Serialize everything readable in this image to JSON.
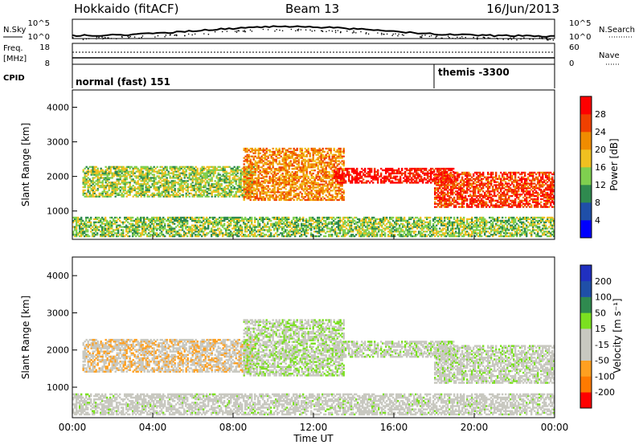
{
  "header": {
    "station": "Hokkaido (fitACF)",
    "beam": "Beam 13",
    "date": "16/Jun/2013"
  },
  "top_panels": {
    "nsky_label": "N.Sky",
    "nsearch_label": "N.Search",
    "noise_ticks": [
      "10^5",
      "10^0"
    ],
    "freq_label": "Freq.",
    "freq_unit": "[MHz]",
    "freq_ticks": [
      "18",
      "8"
    ],
    "nave_label": "Nave",
    "nave_ticks": [
      "60",
      "0"
    ],
    "cpid_label": "CPID",
    "cpid_mode_1": "normal (fast) 151",
    "cpid_mode_2": "themis -3300"
  },
  "colors": {
    "power_scale": [
      "#0000ff",
      "#1f4fa8",
      "#2f8a4f",
      "#7fcf4f",
      "#f0c020",
      "#f08c00",
      "#f04000",
      "#ff0000"
    ],
    "velocity_scale": [
      "#ff0000",
      "#ff7a00",
      "#ffa020",
      "#c8c8c0",
      "#c8c8c0",
      "#7be020",
      "#2f8a4f",
      "#1f4fa8",
      "#2030c0"
    ]
  },
  "chart_data": [
    {
      "type": "heatmap",
      "name": "Power",
      "ylabel": "Slant Range [km]",
      "xlabel": "Time UT",
      "xlim": [
        "00:00",
        "24:00"
      ],
      "ylim": [
        180,
        4500
      ],
      "x_ticks": [
        "00:00",
        "04:00",
        "08:00",
        "12:00",
        "16:00",
        "20:00",
        "00:00"
      ],
      "y_ticks": [
        1000,
        2000,
        3000,
        4000
      ],
      "colorbar": {
        "label": "Power [dB]",
        "ticks": [
          4,
          8,
          12,
          16,
          20,
          24,
          28
        ]
      }
    },
    {
      "type": "heatmap",
      "name": "Velocity",
      "ylabel": "Slant Range [km]",
      "xlabel": "Time UT",
      "xlim": [
        "00:00",
        "24:00"
      ],
      "ylim": [
        180,
        4500
      ],
      "x_ticks": [
        "00:00",
        "04:00",
        "08:00",
        "12:00",
        "16:00",
        "20:00",
        "00:00"
      ],
      "y_ticks": [
        1000,
        2000,
        3000,
        4000
      ],
      "colorbar": {
        "label": "Velocity [m s⁻¹]",
        "ticks": [
          200,
          100,
          50,
          15,
          -15,
          -50,
          -100,
          -200
        ]
      }
    }
  ],
  "scan_features": [
    {
      "t": [
        0.5,
        9.0
      ],
      "r": [
        1400,
        2300
      ],
      "power": 15,
      "velocity": -40
    },
    {
      "t": [
        8.5,
        13.5
      ],
      "r": [
        1300,
        2800
      ],
      "power": 22,
      "velocity": 5
    },
    {
      "t": [
        13.0,
        19.0
      ],
      "r": [
        1800,
        2250
      ],
      "power": 30,
      "velocity": 0
    },
    {
      "t": [
        18.0,
        24.0
      ],
      "r": [
        1100,
        2100
      ],
      "power": 27,
      "velocity": -5
    },
    {
      "t": [
        0.0,
        24.0
      ],
      "r": [
        250,
        800
      ],
      "power": 14,
      "velocity": -10
    }
  ]
}
